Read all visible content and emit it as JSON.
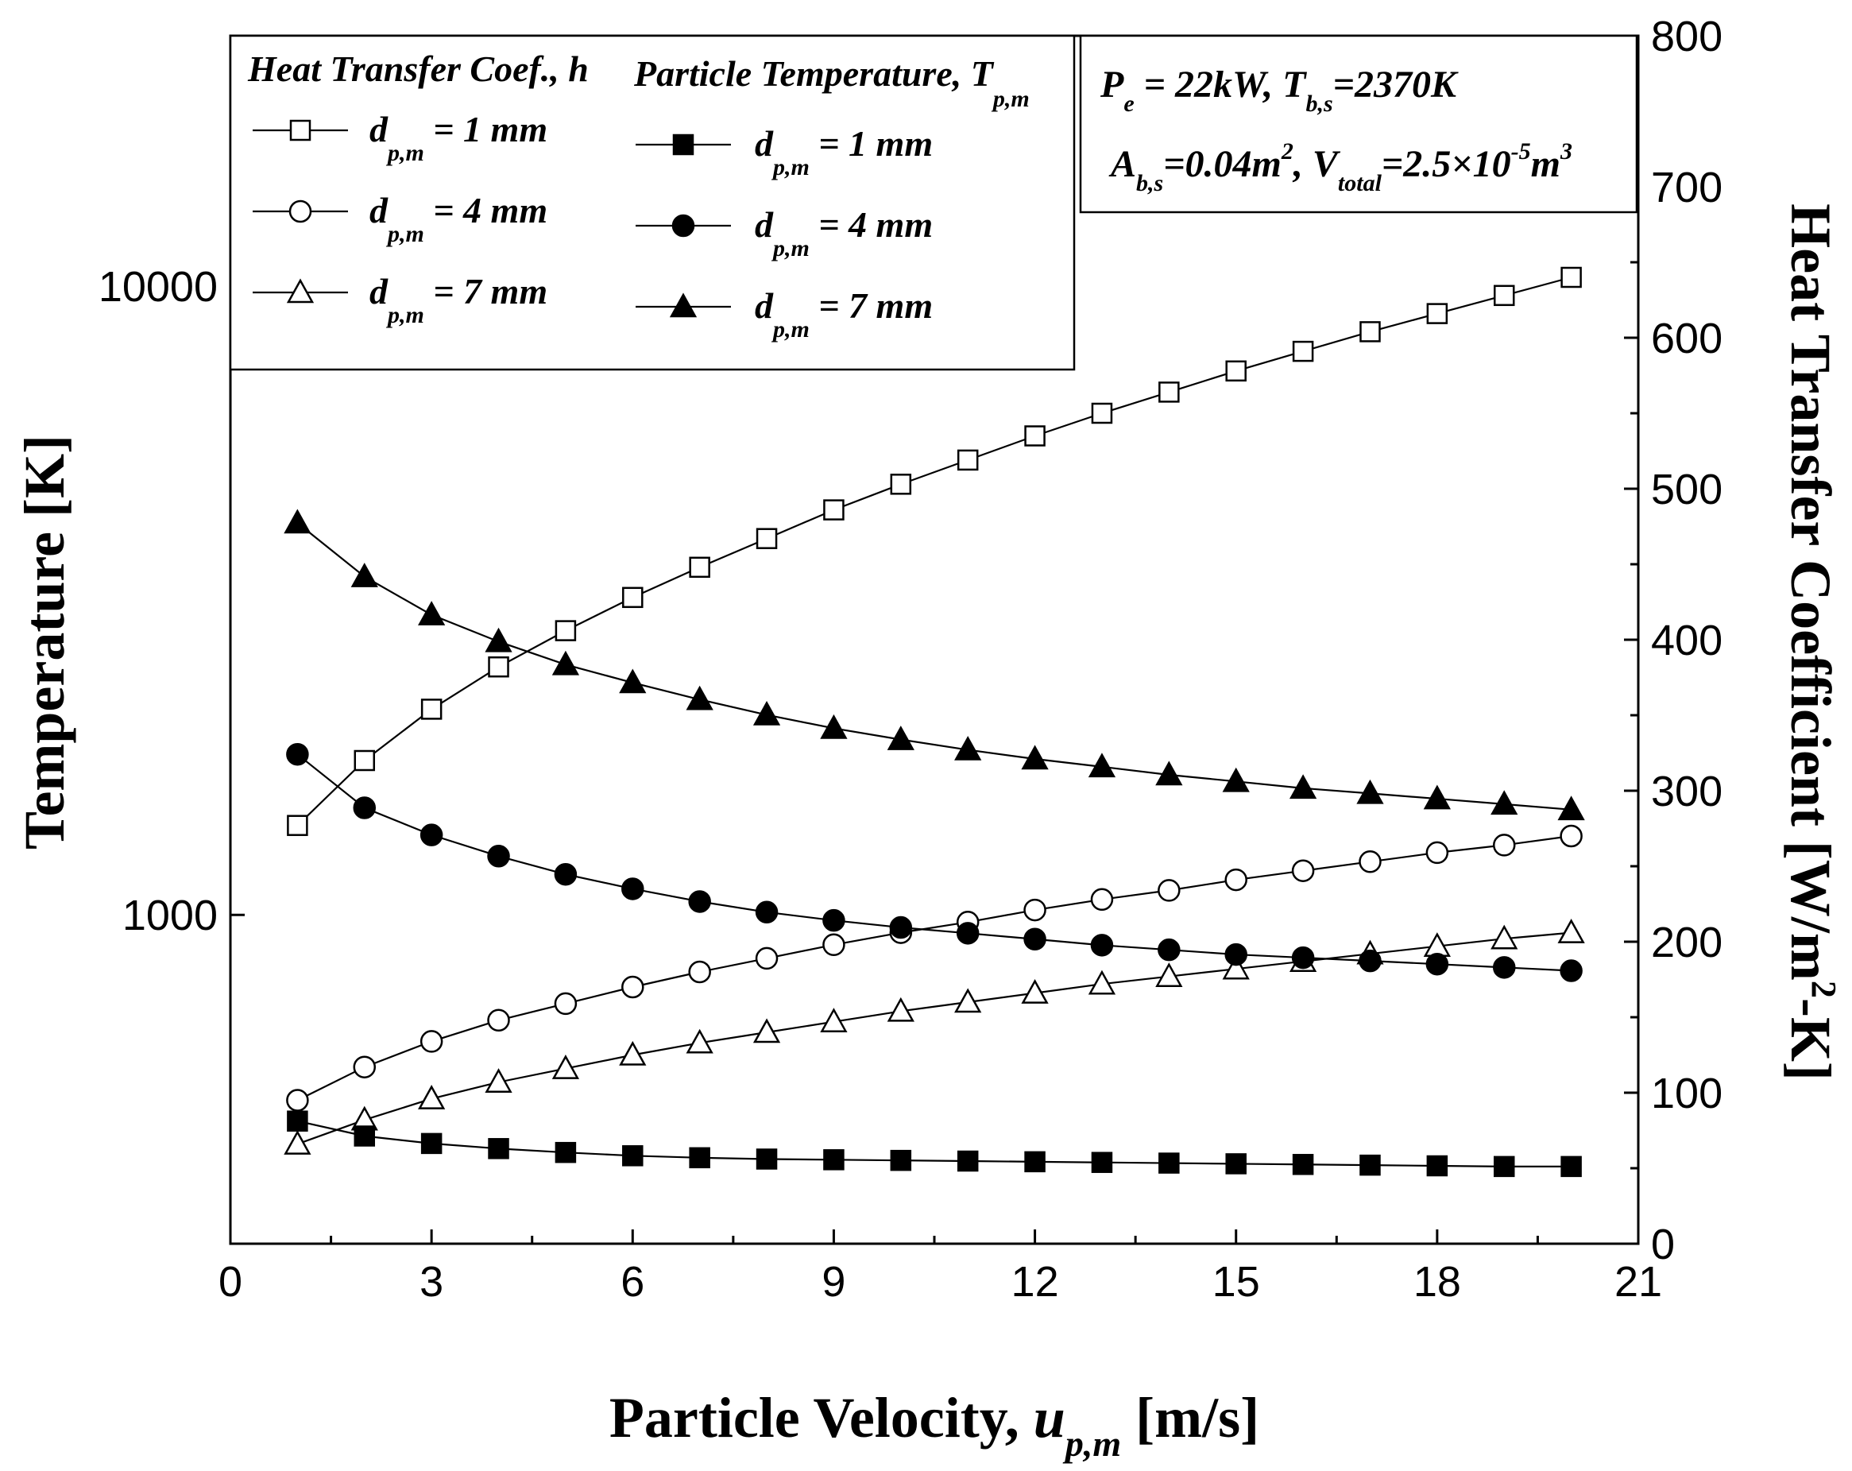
{
  "chart_data": {
    "type": "line",
    "xlabel": "Particle Velocity, u_p,m [m/s]",
    "xlabel_main": "Particle Velocity, ",
    "xlabel_var": "u",
    "xlabel_sub": "p,m",
    "xlabel_unit": " [m/s]",
    "ylabel_left": "Temperature [K]",
    "ylabel_right_main": "Heat Transfer Coefficient [W/m",
    "ylabel_right_sup": "2",
    "ylabel_right_end": "-K]",
    "xlim": [
      0,
      21
    ],
    "xticks": [
      0,
      3,
      6,
      9,
      12,
      15,
      18,
      21
    ],
    "xtick_labels": [
      "0",
      "3",
      "6",
      "9",
      "12",
      "15",
      "18",
      "21"
    ],
    "left_axis": {
      "scale": "log",
      "ylim": [
        300,
        25000
      ],
      "ticks": [
        1000,
        10000
      ],
      "tick_labels": [
        "1000",
        "10000"
      ]
    },
    "right_axis": {
      "scale": "linear",
      "ylim": [
        0,
        800
      ],
      "ticks": [
        0,
        100,
        200,
        300,
        400,
        500,
        600,
        700,
        800
      ],
      "tick_labels": [
        "0",
        "100",
        "200",
        "300",
        "400",
        "500",
        "600",
        "700",
        "800"
      ]
    },
    "x": [
      1,
      2,
      3,
      4,
      5,
      6,
      7,
      8,
      9,
      10,
      11,
      12,
      13,
      14,
      15,
      16,
      17,
      18,
      19,
      20
    ],
    "series": [
      {
        "name": "Heat Transfer Coef., h  d_p,m = 1 mm",
        "axis": "right",
        "marker": "square-open",
        "values": [
          277,
          320,
          354,
          382,
          406,
          428,
          448,
          467,
          486,
          503,
          519,
          535,
          550,
          564,
          578,
          591,
          604,
          616,
          628,
          640
        ]
      },
      {
        "name": "Heat Transfer Coef., h  d_p,m = 4 mm",
        "axis": "right",
        "marker": "circle-open",
        "values": [
          95,
          117,
          134,
          148,
          159,
          170,
          180,
          189,
          198,
          206,
          213,
          221,
          228,
          234,
          241,
          247,
          253,
          259,
          264,
          270
        ]
      },
      {
        "name": "Heat Transfer Coef., h  d_p,m = 7 mm",
        "axis": "right",
        "marker": "triangle-open",
        "values": [
          66,
          82,
          96,
          107,
          116,
          125,
          133,
          140,
          147,
          154,
          160,
          166,
          172,
          177,
          182,
          187,
          192,
          197,
          202,
          206
        ]
      },
      {
        "name": "Particle Temperature, T_p,m  d_p,m = 1 mm",
        "axis": "left",
        "marker": "square-filled",
        "values": [
          470,
          445,
          433,
          425,
          419,
          414,
          411,
          409,
          408,
          407,
          406,
          405,
          404,
          403,
          402,
          401,
          400,
          399,
          398,
          398
        ]
      },
      {
        "name": "Particle Temperature, T_p,m  d_p,m = 4 mm",
        "axis": "left",
        "marker": "circle-filled",
        "values": [
          1800,
          1480,
          1340,
          1240,
          1160,
          1100,
          1050,
          1010,
          980,
          955,
          935,
          915,
          895,
          880,
          865,
          855,
          845,
          835,
          825,
          815
        ]
      },
      {
        "name": "Particle Temperature, T_p,m  d_p,m = 7 mm",
        "axis": "left",
        "marker": "triangle-filled",
        "values": [
          4200,
          3450,
          3000,
          2720,
          2500,
          2340,
          2200,
          2080,
          1980,
          1900,
          1830,
          1770,
          1720,
          1670,
          1630,
          1590,
          1560,
          1530,
          1500,
          1470
        ]
      }
    ],
    "legend": {
      "header_left": "Heat Transfer Coef., h",
      "header_right": "Particle Temperature, T",
      "header_right_sub": "p,m",
      "entries": [
        {
          "var": "d",
          "sub": "p,m",
          "text": " = 1 mm"
        },
        {
          "var": "d",
          "sub": "p,m",
          "text": " = 4 mm"
        },
        {
          "var": "d",
          "sub": "p,m",
          "text": " = 7 mm"
        }
      ],
      "placement": "top-left"
    },
    "annotation": {
      "line1": {
        "p": "P",
        "p_sub": "e",
        "mid": " = 22kW, T",
        "t_sub": "b,s",
        "end": "=2370K"
      },
      "line2": {
        "a": "A",
        "a_sub": "b,s",
        "a_val": "=0.04m",
        "a_sup": "2",
        "v": ", V",
        "v_sub": "total",
        "v_val": "=2.5×10",
        "v_sup": "-5",
        "v_end": "m",
        "v_end_sup": "3"
      },
      "placement": "top-right"
    }
  }
}
